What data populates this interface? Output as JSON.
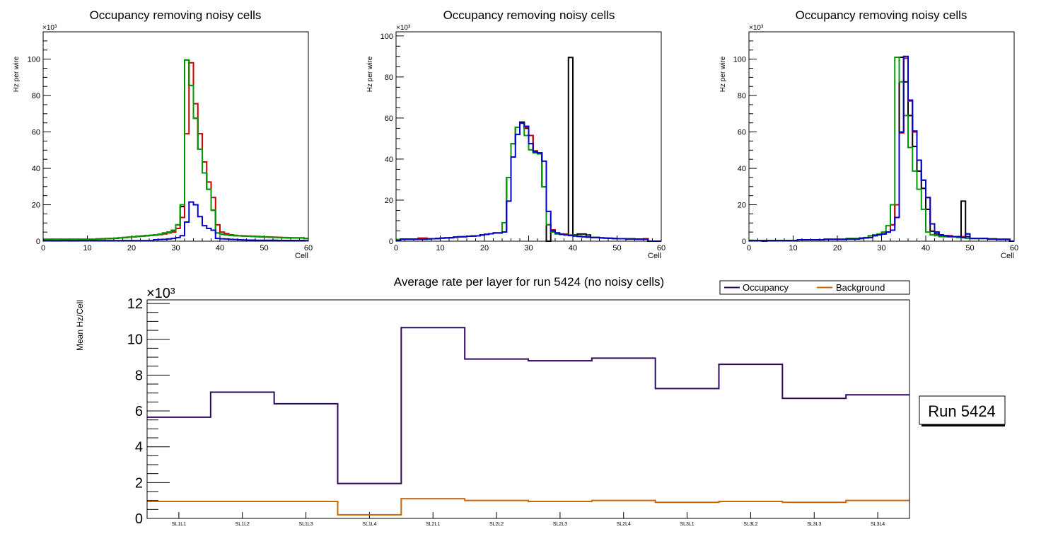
{
  "chart_data": [
    {
      "type": "histogram-step",
      "title": "Occupancy removing noisy cells",
      "xlabel": "Cell",
      "ylabel": "Hz per wire",
      "yexponent": "×10³",
      "xlim": [
        0,
        60
      ],
      "ylim": [
        0,
        115
      ],
      "yticks": [
        0,
        20,
        40,
        60,
        80,
        100
      ],
      "xticks": [
        0,
        10,
        20,
        30,
        40,
        50,
        60
      ],
      "bin_start": 0,
      "bin_width": 1,
      "series": [
        {
          "name": "black",
          "color": "#000000",
          "values": [
            1,
            1,
            1,
            1,
            1,
            1,
            1,
            1,
            1,
            1,
            1,
            1,
            1.2,
            1.3,
            1.4,
            1.5,
            1.6,
            1.8,
            2,
            2.2,
            2.4,
            2.6,
            2.8,
            3,
            3.2,
            3.4,
            3.8,
            4.5,
            5,
            5.8,
            9,
            19,
            99.5,
            85.5,
            67.5,
            50.5,
            37.5,
            28.5,
            17,
            4.5,
            3.8,
            3.5,
            3.2,
            3,
            2.9,
            2.8,
            2.7,
            2.6,
            2.5,
            2.4,
            2.3,
            2.2,
            2.1,
            2,
            1.9,
            1.8,
            1.8,
            1.8,
            1.8,
            1.5
          ]
        },
        {
          "name": "red",
          "color": "#cc0000",
          "values": [
            1,
            1,
            1,
            1,
            1,
            1,
            1,
            1,
            1,
            1,
            1,
            1,
            1.2,
            1.3,
            1.4,
            1.5,
            1.6,
            1.8,
            2,
            2.2,
            2.4,
            2.6,
            2.8,
            3,
            3.2,
            3.4,
            3.6,
            4,
            4.5,
            5,
            7,
            13,
            59,
            98,
            75.5,
            59,
            43.5,
            32.5,
            24,
            9,
            5,
            4.2,
            3.5,
            3.2,
            3,
            2.9,
            2.8,
            2.7,
            2.6,
            2.5,
            2.4,
            2.3,
            2.2,
            2.1,
            2,
            1.9,
            1.8,
            1.8,
            1.8,
            1.5
          ]
        },
        {
          "name": "green",
          "color": "#009900",
          "values": [
            1,
            1,
            1,
            1,
            1,
            1,
            1,
            1,
            1,
            1,
            1,
            1,
            1.2,
            1.3,
            1.4,
            1.5,
            1.6,
            1.8,
            2,
            2.2,
            2.4,
            2.6,
            2.8,
            3,
            3.2,
            3.4,
            3.8,
            4.5,
            5,
            6,
            9,
            20,
            99.5,
            85.5,
            67.5,
            50.5,
            37.5,
            28.5,
            17,
            4.5,
            3.8,
            3.5,
            3.2,
            3,
            2.9,
            2.8,
            2.7,
            2.6,
            2.5,
            2.4,
            2.3,
            2.2,
            2.1,
            2,
            1.9,
            1.8,
            1.8,
            1.8,
            1.8,
            1.5
          ]
        },
        {
          "name": "blue",
          "color": "#0000cc",
          "values": [
            0.3,
            0.3,
            0.3,
            0.3,
            0.3,
            0.3,
            0.3,
            0.3,
            0.3,
            0.3,
            0.3,
            0.3,
            0.3,
            0.3,
            0.3,
            0.3,
            0.3,
            0.3,
            0.3,
            0.3,
            0.3,
            0.3,
            0.3,
            0.3,
            0.3,
            0.8,
            0.9,
            1,
            1.2,
            1.5,
            2,
            3,
            10.5,
            21.5,
            20,
            13.5,
            8.5,
            7,
            6,
            1.5,
            1.3,
            1.2,
            1,
            0.9,
            0.8,
            0.7,
            0.6,
            0.6,
            0.5,
            0.5,
            0.5,
            0.5,
            0.5,
            0.4,
            0.4,
            0.4,
            0.4,
            0.4,
            0.4,
            0.3
          ]
        }
      ]
    },
    {
      "type": "histogram-step",
      "title": "Occupancy removing noisy cells",
      "xlabel": "Cell",
      "ylabel": "Hz per wire",
      "yexponent": "×10³",
      "xlim": [
        0,
        60
      ],
      "ylim": [
        0,
        102
      ],
      "yticks": [
        0,
        20,
        40,
        60,
        80,
        100
      ],
      "xticks": [
        0,
        10,
        20,
        30,
        40,
        50,
        60
      ],
      "bin_start": 0,
      "bin_width": 1,
      "series": [
        {
          "name": "black",
          "color": "#000000",
          "values": [
            0.5,
            1,
            1,
            1,
            1,
            1,
            1,
            1.1,
            1.2,
            1.3,
            1.5,
            1.6,
            1.7,
            2,
            2.1,
            2.2,
            2.4,
            2.5,
            2.6,
            3,
            3.3,
            3.6,
            4,
            4,
            4.5,
            31,
            47.5,
            55.5,
            58,
            55,
            51.5,
            44,
            43,
            26.5,
            0,
            5,
            4,
            3.5,
            3.4,
            89.5,
            3,
            3.5,
            3.5,
            3,
            1.8,
            1.8,
            1.6,
            1.5,
            1.4,
            1.3,
            1.2,
            1.2,
            1.1,
            1.1,
            1,
            1,
            1,
            0,
            0,
            0
          ]
        },
        {
          "name": "red",
          "color": "#cc0000",
          "values": [
            0.5,
            1,
            1,
            1,
            1,
            1.5,
            1.5,
            1.2,
            1.2,
            1.3,
            1.5,
            1.6,
            1.7,
            2,
            2.1,
            2.2,
            2.4,
            2.5,
            2.6,
            3,
            3.3,
            3.6,
            4,
            4,
            4.5,
            31,
            47.5,
            55.5,
            57.5,
            55.5,
            51.5,
            44,
            43,
            26.5,
            8,
            5.5,
            4,
            3.5,
            3.4,
            3,
            2.8,
            2.5,
            2.3,
            2,
            1.8,
            1.8,
            1.6,
            1.5,
            1.4,
            1.3,
            1.2,
            1.2,
            1.1,
            1.1,
            1,
            1,
            1.2,
            0,
            0,
            0
          ]
        },
        {
          "name": "green",
          "color": "#009900",
          "values": [
            0.8,
            1,
            1,
            1,
            1,
            1,
            1,
            1.1,
            1.2,
            1.3,
            1.5,
            1.6,
            1.7,
            2,
            2.1,
            2.2,
            2.4,
            2.5,
            2.6,
            3,
            3.3,
            3.6,
            4,
            4,
            9,
            31,
            47.5,
            55.5,
            57.5,
            51.5,
            44.5,
            43,
            42.5,
            26.5,
            8,
            4.5,
            3.5,
            3.3,
            3.2,
            2.9,
            2.7,
            2.5,
            2.3,
            2,
            1.8,
            1.8,
            1.6,
            1.5,
            1.4,
            1.3,
            1.2,
            1.2,
            1.1,
            1.1,
            1,
            1,
            1,
            0,
            0,
            0
          ]
        },
        {
          "name": "blue",
          "color": "#0000cc",
          "values": [
            0.3,
            1,
            1,
            1,
            1,
            1,
            1,
            1.1,
            1.2,
            1.3,
            1.5,
            1.6,
            1.7,
            2,
            2.1,
            2.2,
            2.4,
            2.5,
            2.6,
            3,
            3.3,
            3.6,
            4,
            4,
            4.5,
            19.5,
            41,
            52,
            57.5,
            56,
            47.5,
            43.5,
            43,
            39,
            14.5,
            5,
            4,
            3.3,
            3,
            2.7,
            2.5,
            2.3,
            2.1,
            2,
            1.8,
            1.8,
            1.6,
            1.5,
            1.4,
            1.3,
            1.2,
            1.2,
            1.1,
            1.1,
            1,
            1,
            1,
            0,
            0,
            0
          ]
        }
      ]
    },
    {
      "type": "histogram-step",
      "title": "Occupancy removing noisy cells",
      "xlabel": "Cell",
      "ylabel": "Hz per wire",
      "yexponent": "×10³",
      "xlim": [
        0,
        60
      ],
      "ylim": [
        0,
        115
      ],
      "yticks": [
        0,
        20,
        40,
        60,
        80,
        100
      ],
      "xticks": [
        0,
        10,
        20,
        30,
        40,
        50,
        60
      ],
      "bin_start": 0,
      "bin_width": 1,
      "series": [
        {
          "name": "black",
          "color": "#000000",
          "values": [
            0.3,
            0.3,
            0.3,
            0.3,
            0.3,
            0.3,
            0.3,
            0.3,
            0.3,
            0.3,
            0.3,
            0.8,
            0.8,
            0.8,
            0.8,
            0.8,
            0.8,
            1,
            1,
            1,
            1,
            1,
            1.2,
            1.2,
            1.2,
            1.5,
            1.8,
            2,
            3,
            3.5,
            4,
            5,
            9,
            20,
            101,
            87.5,
            69,
            52,
            38.5,
            29,
            17.5,
            5.5,
            4,
            3,
            2.5,
            2.5,
            2.5,
            2.5,
            22,
            2.5,
            1.5,
            1.5,
            1.5,
            1.5,
            1.2,
            1.2,
            1,
            1,
            1,
            0
          ]
        },
        {
          "name": "red",
          "color": "#cc0000",
          "values": [
            0.3,
            0.3,
            0.3,
            -0.5,
            0.3,
            0.3,
            0.3,
            0.3,
            0.3,
            0.3,
            0.3,
            0.8,
            0.8,
            0.8,
            0.8,
            0.8,
            0.8,
            1,
            1,
            1,
            1,
            1,
            1.2,
            1.2,
            1.2,
            1.5,
            1.8,
            2,
            3,
            3.5,
            4,
            5,
            9,
            20,
            59.5,
            100.5,
            77,
            60,
            44.5,
            33.5,
            24,
            9.5,
            5,
            3.5,
            3,
            3,
            2.5,
            2.5,
            2.5,
            4,
            1.5,
            1.5,
            1.5,
            1.5,
            1.2,
            1.2,
            1,
            1,
            1,
            0
          ]
        },
        {
          "name": "green",
          "color": "#009900",
          "values": [
            0.5,
            0.3,
            0.3,
            0.3,
            0.3,
            0.3,
            0.3,
            0.3,
            0.3,
            0.3,
            0.3,
            0.8,
            0.8,
            0.8,
            0.8,
            0.8,
            0.8,
            1,
            1,
            1,
            1,
            1,
            1.5,
            1.5,
            1.5,
            1.8,
            2,
            3,
            3.5,
            4,
            5,
            8.5,
            20,
            101,
            87.5,
            69,
            51.5,
            38.5,
            28.5,
            17.5,
            5,
            3.5,
            3,
            2.5,
            2.5,
            2.5,
            2.5,
            2,
            2,
            1.5,
            1.5,
            1.5,
            1.5,
            1.5,
            1.2,
            1.2,
            1,
            1,
            1,
            0
          ]
        },
        {
          "name": "blue",
          "color": "#0000cc",
          "values": [
            0.3,
            0.3,
            0.3,
            0.3,
            0.3,
            0.3,
            0.3,
            0.3,
            0.3,
            0.3,
            0.3,
            0.8,
            0.8,
            0.8,
            0.8,
            0.8,
            0.8,
            1,
            1,
            1,
            1,
            1,
            1.2,
            1.2,
            1.2,
            1.5,
            1.8,
            2,
            3,
            3.5,
            4,
            5,
            6,
            13,
            60,
            101.5,
            77.5,
            60.5,
            44.5,
            33.5,
            24,
            9.5,
            5,
            3.5,
            3,
            2.5,
            2.5,
            2.5,
            2,
            4,
            1.5,
            1.5,
            1.5,
            1.5,
            1.2,
            1.2,
            1,
            1,
            1,
            0
          ]
        }
      ]
    },
    {
      "type": "histogram-step",
      "title": "Average rate per layer for run 5424 (no noisy cells)",
      "xlabel": "",
      "ylabel": "Mean Hz/Cell",
      "yexponent": "×10³",
      "ylim": [
        0,
        12.2
      ],
      "yticks": [
        0,
        2,
        4,
        6,
        8,
        10,
        12
      ],
      "categories": [
        "SL1L1",
        "SL1L2",
        "SL1L3",
        "SL1L4",
        "SL2L1",
        "SL2L2",
        "SL2L3",
        "SL2L4",
        "SL3L1",
        "SL3L2",
        "SL3L3",
        "SL3L4"
      ],
      "legend_position": "top-right",
      "series": [
        {
          "name": "Occupancy",
          "color": "#2e0a5e",
          "values": [
            5.65,
            7.05,
            6.4,
            1.95,
            10.65,
            8.9,
            8.8,
            8.95,
            7.25,
            8.6,
            6.7,
            6.9
          ]
        },
        {
          "name": "Background",
          "color": "#c8680a",
          "values": [
            0.95,
            0.95,
            0.95,
            0.2,
            1.1,
            1.0,
            0.95,
            1.0,
            0.9,
            0.95,
            0.9,
            1.0
          ]
        }
      ],
      "annotation": "Run 5424"
    }
  ]
}
